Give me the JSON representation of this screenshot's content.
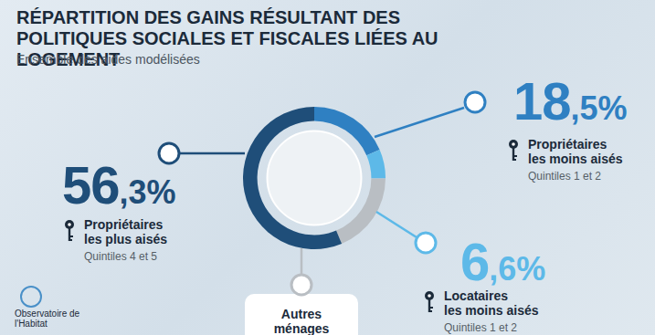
{
  "chart_data": {
    "type": "pie",
    "title": "RÉPARTITION DES GAINS RÉSULTANT DES POLITIQUES SOCIALES ET FISCALES LIÉES AU LOGEMENT",
    "subtitle": "Ensemble des aides modélisées",
    "categories": [
      "Propriétaires les moins aisés",
      "Locataires les moins aisés",
      "Autres ménages",
      "Propriétaires les plus aisés"
    ],
    "sublabels": [
      "Quintiles 1 et 2",
      "Quintiles 1 et 2",
      null,
      "Quintiles 4 et 5"
    ],
    "values": [
      18.5,
      6.6,
      18.6,
      56.3
    ],
    "value_labels": [
      "18,5%",
      "6,6%",
      null,
      "56,3%"
    ],
    "colors": [
      "#2f80c2",
      "#5db9e8",
      "#b9bec3",
      "#1f4e79"
    ],
    "data_labels": true,
    "logo": "Observatoire de l'Habitat"
  }
}
